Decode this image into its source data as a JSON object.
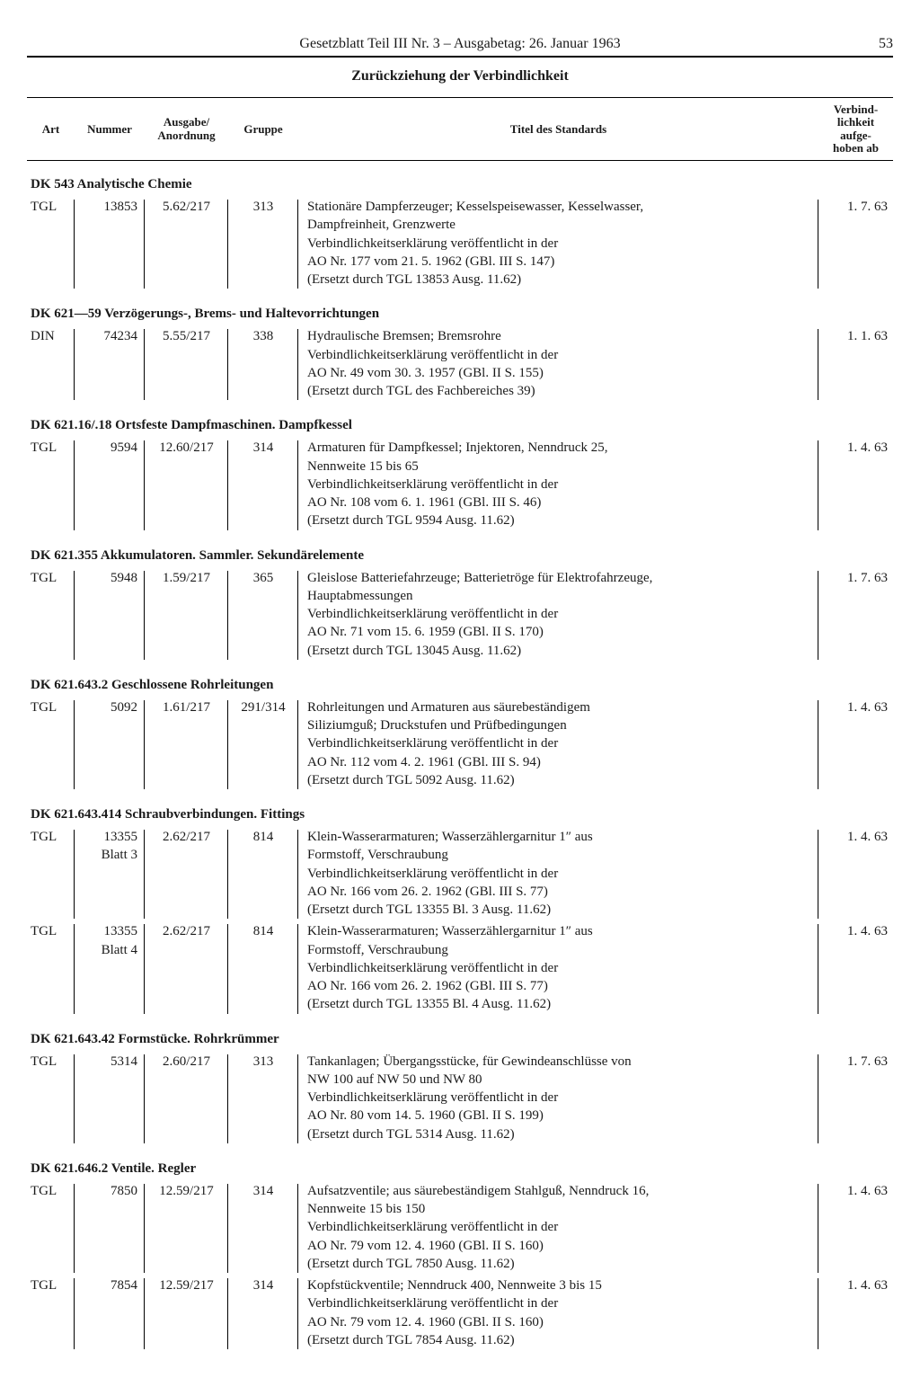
{
  "header": {
    "title": "Gesetzblatt Teil III Nr. 3 – Ausgabetag: 26. Januar 1963",
    "page": "53"
  },
  "section_title": "Zurückziehung der Verbindlichkeit",
  "columns": {
    "art": "Art",
    "nummer": "Nummer",
    "ausgabe": "Ausgabe/\nAnordnung",
    "gruppe": "Gruppe",
    "titel": "Titel des Standards",
    "date": "Verbind-\nlichkeit\naufge-\nhoben ab"
  },
  "categories": [
    {
      "heading": "DK 543 Analytische Chemie",
      "rows": [
        {
          "art": "TGL",
          "nummer": "13853",
          "ausgabe": "5.62/217",
          "gruppe": "313",
          "titel_lines": [
            "Stationäre Dampferzeuger; Kesselspeisewasser, Kesselwasser,",
            "Dampfreinheit, Grenzwerte",
            "Verbindlichkeitserklärung veröffentlicht in der",
            "AO Nr. 177 vom 21. 5. 1962 (GBl. III S. 147)",
            "(Ersetzt durch TGL 13853 Ausg. 11.62)"
          ],
          "date": "1. 7. 63"
        }
      ]
    },
    {
      "heading": "DK 621—59 Verzögerungs-, Brems- und Haltevorrichtungen",
      "rows": [
        {
          "art": "DIN",
          "nummer": "74234",
          "ausgabe": "5.55/217",
          "gruppe": "338",
          "titel_lines": [
            "Hydraulische Bremsen; Bremsrohre",
            "Verbindlichkeitserklärung veröffentlicht in der",
            "AO Nr. 49 vom 30. 3. 1957 (GBl. II S. 155)",
            "(Ersetzt durch TGL des Fachbereiches 39)"
          ],
          "date": "1. 1. 63"
        }
      ]
    },
    {
      "heading": "DK 621.16/.18 Ortsfeste Dampfmaschinen. Dampfkessel",
      "rows": [
        {
          "art": "TGL",
          "nummer": "9594",
          "ausgabe": "12.60/217",
          "gruppe": "314",
          "titel_lines": [
            "Armaturen für Dampfkessel; Injektoren, Nenndruck 25,",
            "Nennweite 15 bis 65",
            "Verbindlichkeitserklärung veröffentlicht in der",
            "AO Nr. 108 vom 6. 1. 1961 (GBl. III S. 46)",
            "(Ersetzt durch TGL 9594 Ausg. 11.62)"
          ],
          "date": "1. 4. 63"
        }
      ]
    },
    {
      "heading": "DK 621.355 Akkumulatoren. Sammler. Sekundärelemente",
      "rows": [
        {
          "art": "TGL",
          "nummer": "5948",
          "ausgabe": "1.59/217",
          "gruppe": "365",
          "titel_lines": [
            "Gleislose Batteriefahrzeuge; Batterietröge für Elektrofahrzeuge,",
            "Hauptabmessungen",
            "Verbindlichkeitserklärung veröffentlicht in der",
            "AO Nr. 71 vom 15. 6. 1959 (GBl. II S. 170)",
            "(Ersetzt durch TGL 13045 Ausg. 11.62)"
          ],
          "date": "1. 7. 63"
        }
      ]
    },
    {
      "heading": "DK 621.643.2 Geschlossene Rohrleitungen",
      "rows": [
        {
          "art": "TGL",
          "nummer": "5092",
          "ausgabe": "1.61/217",
          "gruppe": "291/314",
          "titel_lines": [
            "Rohrleitungen und Armaturen aus säurebeständigem",
            "Siliziumguß; Druckstufen und Prüfbedingungen",
            "Verbindlichkeitserklärung veröffentlicht in der",
            "AO Nr. 112 vom 4. 2. 1961 (GBl. III S. 94)",
            "(Ersetzt durch TGL 5092 Ausg. 11.62)"
          ],
          "date": "1. 4. 63"
        }
      ]
    },
    {
      "heading": "DK 621.643.414 Schraubverbindungen. Fittings",
      "rows": [
        {
          "art": "TGL",
          "nummer": "13355\nBlatt 3",
          "ausgabe": "2.62/217",
          "gruppe": "814",
          "titel_lines": [
            "Klein-Wasserarmaturen; Wasserzählergarnitur 1″ aus",
            "Formstoff, Verschraubung",
            "Verbindlichkeitserklärung veröffentlicht in der",
            "AO Nr. 166 vom 26. 2. 1962 (GBl. III S. 77)",
            "(Ersetzt durch TGL 13355 Bl. 3 Ausg. 11.62)"
          ],
          "date": "1. 4. 63"
        },
        {
          "art": "TGL",
          "nummer": "13355\nBlatt 4",
          "ausgabe": "2.62/217",
          "gruppe": "814",
          "titel_lines": [
            "Klein-Wasserarmaturen; Wasserzählergarnitur 1″ aus",
            "Formstoff, Verschraubung",
            "Verbindlichkeitserklärung veröffentlicht in der",
            "AO Nr. 166 vom 26. 2. 1962 (GBl. III S. 77)",
            "(Ersetzt durch TGL 13355 Bl. 4 Ausg. 11.62)"
          ],
          "date": "1. 4. 63"
        }
      ]
    },
    {
      "heading": "DK 621.643.42 Formstücke. Rohrkrümmer",
      "rows": [
        {
          "art": "TGL",
          "nummer": "5314",
          "ausgabe": "2.60/217",
          "gruppe": "313",
          "titel_lines": [
            "Tankanlagen; Übergangsstücke, für Gewindeanschlüsse von",
            "NW 100 auf NW 50 und NW 80",
            "Verbindlichkeitserklärung veröffentlicht in der",
            "AO Nr. 80 vom 14. 5. 1960 (GBl. II S. 199)",
            "(Ersetzt durch TGL 5314 Ausg. 11.62)"
          ],
          "date": "1. 7. 63"
        }
      ]
    },
    {
      "heading": "DK 621.646.2 Ventile. Regler",
      "rows": [
        {
          "art": "TGL",
          "nummer": "7850",
          "ausgabe": "12.59/217",
          "gruppe": "314",
          "titel_lines": [
            "Aufsatzventile; aus säurebeständigem Stahlguß, Nenndruck 16,",
            "Nennweite 15 bis 150",
            "Verbindlichkeitserklärung veröffentlicht in der",
            "AO Nr. 79 vom 12. 4. 1960 (GBl. II S. 160)",
            "(Ersetzt durch TGL 7850 Ausg. 11.62)"
          ],
          "date": "1. 4. 63"
        },
        {
          "art": "TGL",
          "nummer": "7854",
          "ausgabe": "12.59/217",
          "gruppe": "314",
          "titel_lines": [
            "Kopfstückventile; Nenndruck 400, Nennweite 3 bis 15",
            "Verbindlichkeitserklärung veröffentlicht in der",
            "AO Nr. 79 vom 12. 4. 1960 (GBl. II S. 160)",
            "(Ersetzt durch TGL 7854 Ausg. 11.62)"
          ],
          "date": "1. 4. 63"
        }
      ]
    }
  ]
}
